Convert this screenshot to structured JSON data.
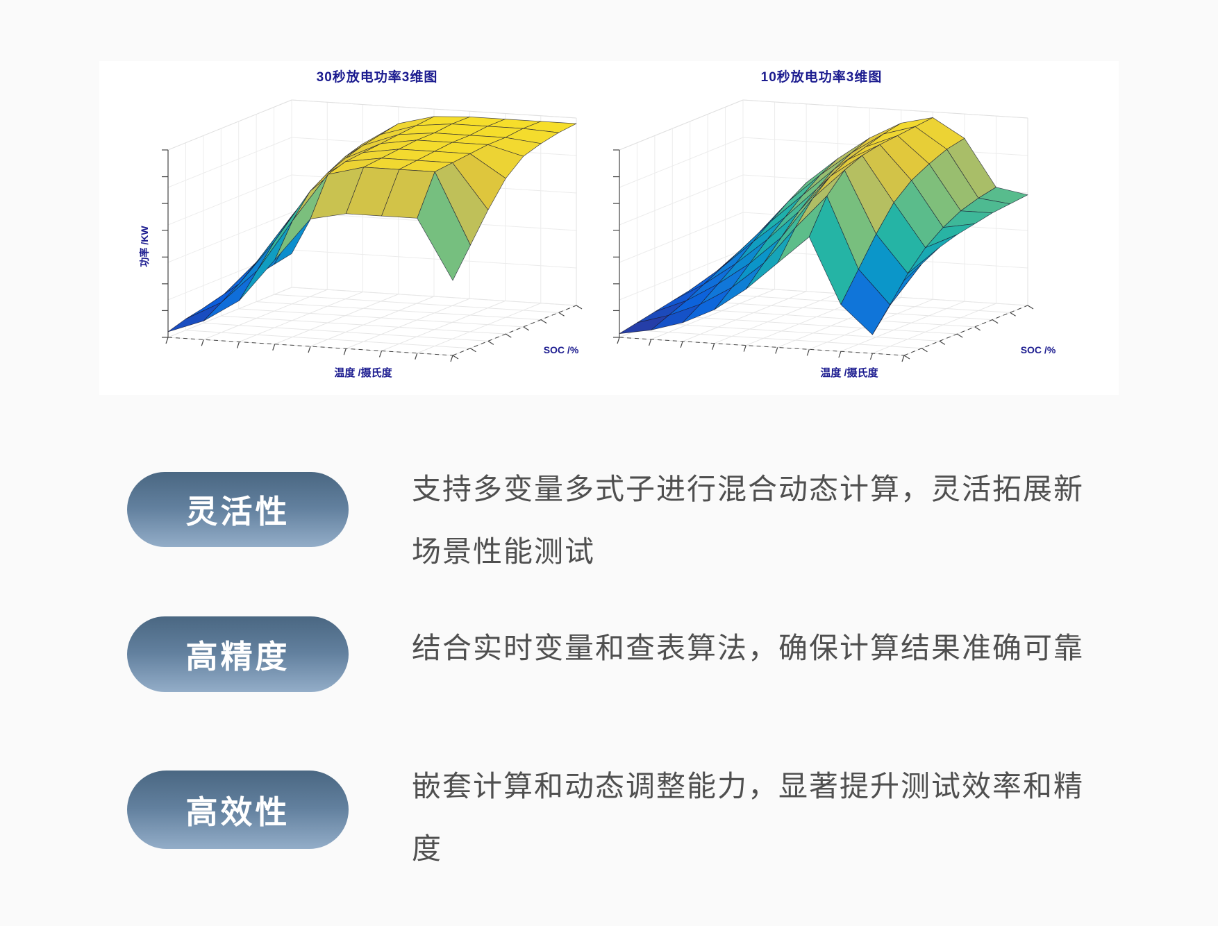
{
  "page": {
    "background": "#fafafa",
    "panel_background": "#ffffff"
  },
  "colors": {
    "chart_title_text": "#1b1b8f",
    "axis_label_text": "#1b1b8f",
    "body_text": "#4f4f4f",
    "pill_gradient_top": "#4a6782",
    "pill_gradient_bottom": "#93adc8",
    "pill_text": "#ffffff",
    "surface_mesh_line": "#1a1a30",
    "colormap_parula": [
      [
        0.0,
        "#352a87"
      ],
      [
        0.13,
        "#0c5edc"
      ],
      [
        0.25,
        "#1077d9"
      ],
      [
        0.38,
        "#0b96c9"
      ],
      [
        0.5,
        "#21b3a7"
      ],
      [
        0.63,
        "#6abf84"
      ],
      [
        0.75,
        "#b2be64"
      ],
      [
        0.85,
        "#ddc53e"
      ],
      [
        0.94,
        "#f2d930"
      ],
      [
        1.0,
        "#fae325"
      ]
    ]
  },
  "chart_data": [
    {
      "type": "surface",
      "title": "30秒放电功率3维图",
      "xlabel": "温度 /摄氏度",
      "ylabel": "SOC /%",
      "zlabel": "功率 /KW",
      "grid": true,
      "note": "z values normalized 0-1 (no numeric tick labels visible)",
      "z_grid": [
        [
          0.03,
          0.1,
          0.22,
          0.45,
          0.68,
          0.72,
          0.72,
          0.72,
          0.4
        ],
        [
          0.06,
          0.16,
          0.34,
          0.62,
          0.88,
          0.93,
          0.93,
          0.93,
          0.55
        ],
        [
          0.08,
          0.22,
          0.46,
          0.74,
          0.91,
          0.94,
          0.94,
          0.94,
          0.7
        ],
        [
          0.1,
          0.3,
          0.56,
          0.8,
          0.92,
          0.95,
          0.95,
          0.95,
          0.83
        ],
        [
          0.12,
          0.37,
          0.64,
          0.84,
          0.93,
          0.96,
          0.96,
          0.96,
          0.91
        ],
        [
          0.14,
          0.44,
          0.71,
          0.87,
          0.94,
          0.96,
          0.96,
          0.96,
          0.94
        ],
        [
          0.16,
          0.5,
          0.76,
          0.89,
          0.95,
          0.97,
          0.97,
          0.97,
          0.96
        ],
        [
          0.18,
          0.54,
          0.79,
          0.91,
          0.96,
          0.97,
          0.97,
          0.97,
          0.97
        ]
      ]
    },
    {
      "type": "surface",
      "title": "10秒放电功率3维图",
      "xlabel": "温度 /摄氏度",
      "ylabel": "SOC /%",
      "grid": true,
      "note": "z values normalized 0-1 (no numeric tick labels visible)",
      "z_grid": [
        [
          0.02,
          0.05,
          0.1,
          0.18,
          0.3,
          0.45,
          0.6,
          0.25,
          0.1,
          0.4
        ],
        [
          0.04,
          0.09,
          0.16,
          0.26,
          0.4,
          0.6,
          0.78,
          0.4,
          0.22,
          0.45
        ],
        [
          0.06,
          0.13,
          0.23,
          0.35,
          0.5,
          0.72,
          0.88,
          0.55,
          0.35,
          0.5
        ],
        [
          0.08,
          0.18,
          0.3,
          0.44,
          0.6,
          0.8,
          0.92,
          0.68,
          0.45,
          0.53
        ],
        [
          0.1,
          0.23,
          0.38,
          0.52,
          0.68,
          0.85,
          0.94,
          0.76,
          0.52,
          0.55
        ],
        [
          0.12,
          0.28,
          0.45,
          0.6,
          0.75,
          0.88,
          0.95,
          0.81,
          0.57,
          0.57
        ],
        [
          0.14,
          0.33,
          0.52,
          0.67,
          0.8,
          0.91,
          0.96,
          0.85,
          0.6,
          0.58
        ],
        [
          0.16,
          0.38,
          0.58,
          0.72,
          0.84,
          0.93,
          0.97,
          0.87,
          0.62,
          0.59
        ]
      ]
    }
  ],
  "features": [
    {
      "label": "灵活性",
      "description": "支持多变量多式子进行混合动态计算，灵活拓展新\n场景性能测试"
    },
    {
      "label": "高精度",
      "description": "结合实时变量和查表算法，确保计算结果准确可靠"
    },
    {
      "label": "高效性",
      "description": "嵌套计算和动态调整能力，显著提升测试效率和精\n度"
    }
  ]
}
